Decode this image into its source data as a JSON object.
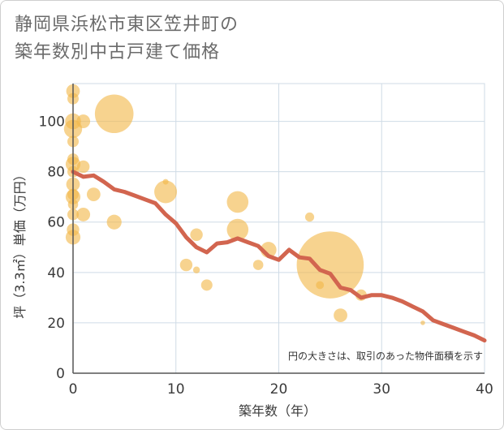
{
  "title_line1": "静岡県浜松市東区笠井町の",
  "title_line2": "築年数別中古戸建て価格",
  "colors": {
    "bubble": "#f2b84b",
    "line": "#d2654f",
    "grid": "#cfdbe6",
    "axis": "#555555"
  },
  "chart_data": {
    "type": "scatter",
    "xlabel": "築年数（年）",
    "ylabel": "坪（3.3㎡）単価（万円）",
    "xlim": [
      0,
      40
    ],
    "ylim": [
      0,
      115
    ],
    "xticks": [
      0,
      10,
      20,
      30,
      40
    ],
    "yticks": [
      0,
      20,
      40,
      60,
      80,
      100
    ],
    "note": "円の大きさは、取引のあった物件面積を示す",
    "bubbles": [
      {
        "x": 0,
        "y": 112,
        "size": 1.2
      },
      {
        "x": 0,
        "y": 109,
        "size": 1.0
      },
      {
        "x": 0,
        "y": 100,
        "size": 1.4
      },
      {
        "x": 0,
        "y": 97,
        "size": 1.6
      },
      {
        "x": 0,
        "y": 92,
        "size": 1.0
      },
      {
        "x": 0,
        "y": 85,
        "size": 1.0
      },
      {
        "x": 0,
        "y": 83,
        "size": 1.3
      },
      {
        "x": 0,
        "y": 80,
        "size": 1.0
      },
      {
        "x": 0,
        "y": 75,
        "size": 1.2
      },
      {
        "x": 0,
        "y": 71,
        "size": 1.0
      },
      {
        "x": 0,
        "y": 70,
        "size": 1.3
      },
      {
        "x": 0,
        "y": 67,
        "size": 0.9
      },
      {
        "x": 0,
        "y": 63,
        "size": 1.0
      },
      {
        "x": 0,
        "y": 57,
        "size": 1.1
      },
      {
        "x": 0,
        "y": 54,
        "size": 1.3
      },
      {
        "x": 1,
        "y": 100,
        "size": 1.2
      },
      {
        "x": 1,
        "y": 82,
        "size": 1.1
      },
      {
        "x": 1,
        "y": 63,
        "size": 1.2
      },
      {
        "x": 2,
        "y": 71,
        "size": 1.2
      },
      {
        "x": 4,
        "y": 103,
        "size": 3.4
      },
      {
        "x": 4,
        "y": 60,
        "size": 1.3
      },
      {
        "x": 9,
        "y": 76,
        "size": 0.5
      },
      {
        "x": 9,
        "y": 72,
        "size": 2.0
      },
      {
        "x": 11,
        "y": 43,
        "size": 1.1
      },
      {
        "x": 12,
        "y": 55,
        "size": 1.1
      },
      {
        "x": 12,
        "y": 41,
        "size": 0.6
      },
      {
        "x": 13,
        "y": 35,
        "size": 1.0
      },
      {
        "x": 16,
        "y": 68,
        "size": 1.9
      },
      {
        "x": 16,
        "y": 57,
        "size": 1.9
      },
      {
        "x": 18,
        "y": 43,
        "size": 0.9
      },
      {
        "x": 19,
        "y": 49,
        "size": 1.4
      },
      {
        "x": 23,
        "y": 62,
        "size": 0.8
      },
      {
        "x": 24,
        "y": 35,
        "size": 0.7
      },
      {
        "x": 25,
        "y": 43,
        "size": 5.9
      },
      {
        "x": 26,
        "y": 23,
        "size": 1.2
      },
      {
        "x": 28,
        "y": 31,
        "size": 1.0
      },
      {
        "x": 34,
        "y": 20,
        "size": 0.4
      }
    ],
    "trend": {
      "x": [
        0,
        1,
        2,
        3,
        4,
        5,
        6,
        7,
        8,
        9,
        10,
        11,
        12,
        13,
        14,
        15,
        16,
        17,
        18,
        19,
        20,
        21,
        22,
        23,
        24,
        25,
        26,
        27,
        28,
        29,
        30,
        31,
        32,
        33,
        34,
        35,
        36,
        37,
        38,
        39,
        40
      ],
      "y": [
        80,
        78,
        78.5,
        76,
        73,
        72,
        70.5,
        69,
        67.5,
        63,
        59.5,
        54,
        50,
        48,
        51.5,
        52,
        53.5,
        52,
        50.5,
        46.5,
        45,
        49,
        46,
        45.5,
        41,
        39.5,
        34,
        33,
        30,
        31,
        31,
        30,
        28.5,
        26.5,
        24.5,
        21,
        19.5,
        18,
        16.5,
        15,
        13
      ]
    }
  }
}
